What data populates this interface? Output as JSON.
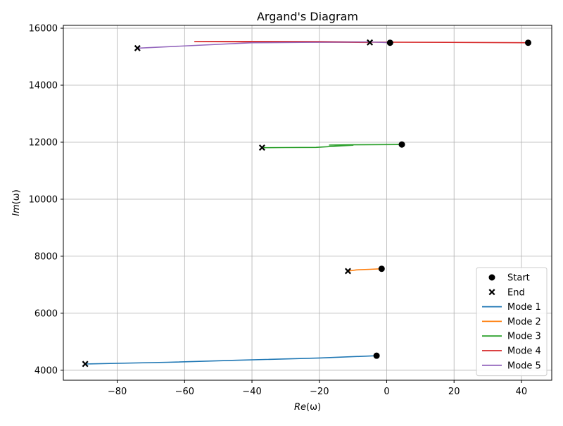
{
  "chart_data": {
    "type": "line",
    "title": "Argand's Diagram",
    "xlabel": {
      "prefix": "Re",
      "suffix": "(ω)"
    },
    "ylabel": {
      "prefix": "Im",
      "suffix": "(ω)"
    },
    "xlim": [
      -96,
      49
    ],
    "ylim": [
      3650,
      16100
    ],
    "xticks": [
      -80,
      -60,
      -40,
      -20,
      0,
      20,
      40
    ],
    "yticks": [
      4000,
      6000,
      8000,
      10000,
      12000,
      14000,
      16000
    ],
    "xtick_labels": [
      "−80",
      "−60",
      "−40",
      "−20",
      "0",
      "20",
      "40"
    ],
    "ytick_labels": [
      "4000",
      "6000",
      "8000",
      "10000",
      "12000",
      "14000",
      "16000"
    ],
    "grid": true,
    "legend_position": "lower right",
    "legend": [
      {
        "label": "Start",
        "kind": "marker-circle",
        "color": "#000000"
      },
      {
        "label": "End",
        "kind": "marker-x",
        "color": "#000000"
      },
      {
        "label": "Mode 1",
        "kind": "line",
        "color": "#1f77b4"
      },
      {
        "label": "Mode 2",
        "kind": "line",
        "color": "#ff7f0e"
      },
      {
        "label": "Mode 3",
        "kind": "line",
        "color": "#2ca02c"
      },
      {
        "label": "Mode 4",
        "kind": "line",
        "color": "#d62728"
      },
      {
        "label": "Mode 5",
        "kind": "line",
        "color": "#9467bd"
      }
    ],
    "series": [
      {
        "name": "Mode 1",
        "color": "#1f77b4",
        "x": [
          -3,
          -20,
          -45,
          -65,
          -89.5
        ],
        "y": [
          4510,
          4430,
          4350,
          4280,
          4220
        ]
      },
      {
        "name": "Mode 2",
        "color": "#ff7f0e",
        "x": [
          -1.5,
          -5,
          -9,
          -11.5
        ],
        "y": [
          7560,
          7540,
          7520,
          7480
        ]
      },
      {
        "name": "Mode 3",
        "color": "#2ca02c",
        "x": [
          4.5,
          -10,
          -17,
          -10,
          -21,
          -30,
          -37
        ],
        "y": [
          11920,
          11910,
          11900,
          11895,
          11820,
          11815,
          11810
        ]
      },
      {
        "name": "Mode 4",
        "color": "#d62728",
        "x": [
          42,
          1,
          -20,
          -40,
          -57,
          -40,
          -20,
          -5
        ],
        "y": [
          15490,
          15510,
          15530,
          15535,
          15530,
          15520,
          15510,
          15500
        ]
      },
      {
        "name": "Mode 5",
        "color": "#9467bd",
        "x": [
          1,
          -5,
          -40,
          -74
        ],
        "y": [
          15490,
          15520,
          15490,
          15300
        ]
      }
    ],
    "start_points": [
      {
        "x": -3,
        "y": 4510
      },
      {
        "x": -1.5,
        "y": 7560
      },
      {
        "x": 4.5,
        "y": 11920
      },
      {
        "x": 42,
        "y": 15490
      },
      {
        "x": 1,
        "y": 15490
      }
    ],
    "end_points": [
      {
        "x": -89.5,
        "y": 4220
      },
      {
        "x": -11.5,
        "y": 7480
      },
      {
        "x": -37,
        "y": 11810
      },
      {
        "x": -5,
        "y": 15500
      },
      {
        "x": -74,
        "y": 15300
      }
    ]
  }
}
